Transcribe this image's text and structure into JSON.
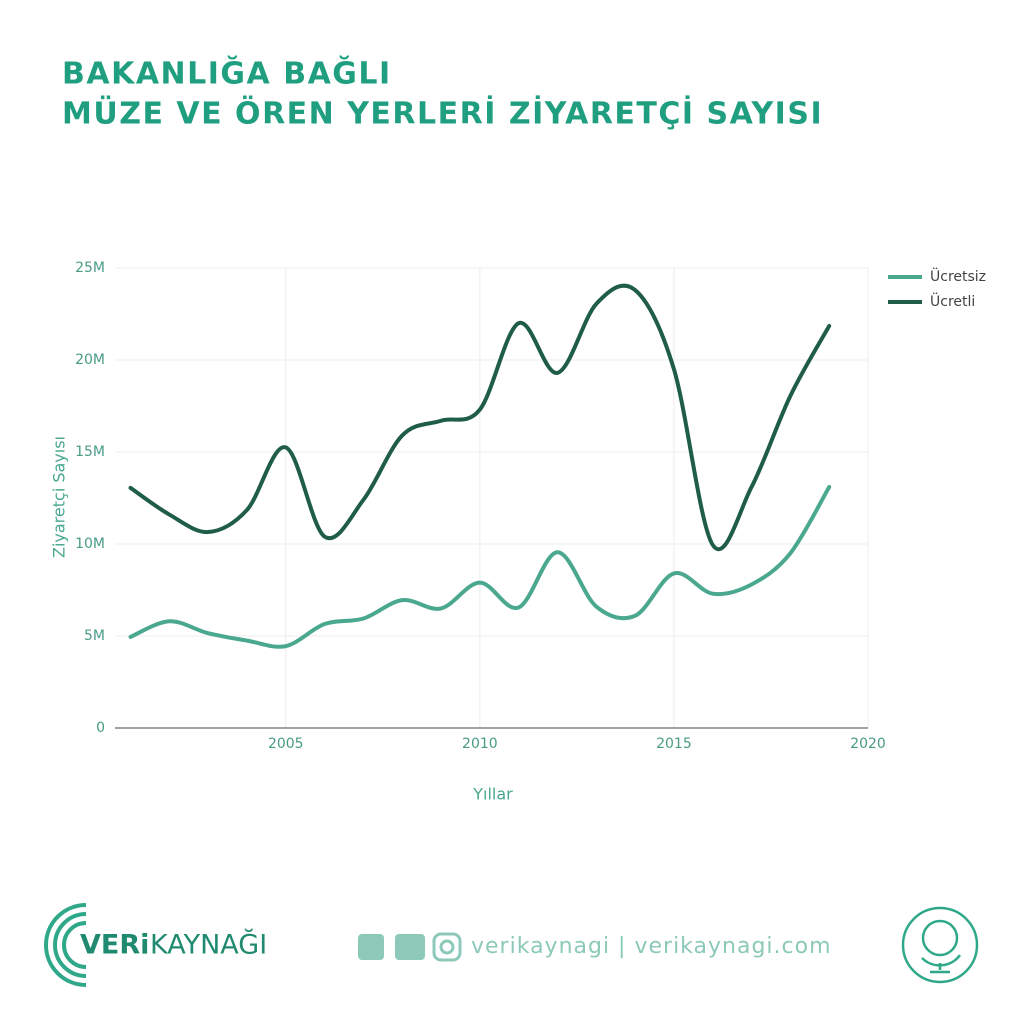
{
  "chart_data": {
    "type": "line",
    "title": [
      "BAKANLIĞA BAĞLI",
      "MÜZE VE ÖREN YERLERİ ZİYARETÇİ SAYISI"
    ],
    "x_label": "Yıllar",
    "y_label": "Ziyaretçi Sayısı",
    "x": [
      2001,
      2002,
      2003,
      2004,
      2005,
      2006,
      2007,
      2008,
      2009,
      2010,
      2011,
      2012,
      2013,
      2014,
      2015,
      2016,
      2017,
      2018,
      2019
    ],
    "series": [
      {
        "name": "Ücretsiz",
        "color": "#4aa88e",
        "values": [
          4950000,
          5800000,
          5150000,
          4750000,
          4450000,
          5650000,
          5950000,
          6950000,
          6500000,
          7900000,
          6550000,
          9550000,
          6600000,
          6100000,
          8400000,
          7300000,
          7800000,
          9500000,
          13100000
        ]
      },
      {
        "name": "Ücretli",
        "color": "#1f5c4a",
        "values": [
          13050000,
          11600000,
          10650000,
          11850000,
          15250000,
          10400000,
          12400000,
          15900000,
          16700000,
          17300000,
          22000000,
          19300000,
          23050000,
          23800000,
          19500000,
          9950000,
          13100000,
          18050000,
          21850000
        ]
      }
    ],
    "xlim": [
      2000.6,
      2020
    ],
    "xticks": [
      2005,
      2010,
      2015,
      2020
    ],
    "ylim": [
      0,
      25000000
    ],
    "yticks": [
      0,
      {
        "value": 5000000,
        "label": "5M"
      },
      {
        "value": 10000000,
        "label": "10M"
      },
      {
        "value": 15000000,
        "label": "15M"
      },
      {
        "value": 20000000,
        "label": "20M"
      },
      {
        "value": 25000000,
        "label": "25M"
      }
    ],
    "grid": true,
    "legend": "top-right"
  },
  "footer": {
    "brand": [
      "VERi",
      "KAYNAĞI"
    ],
    "social": "verikaynagi | verikaynagi.com"
  }
}
